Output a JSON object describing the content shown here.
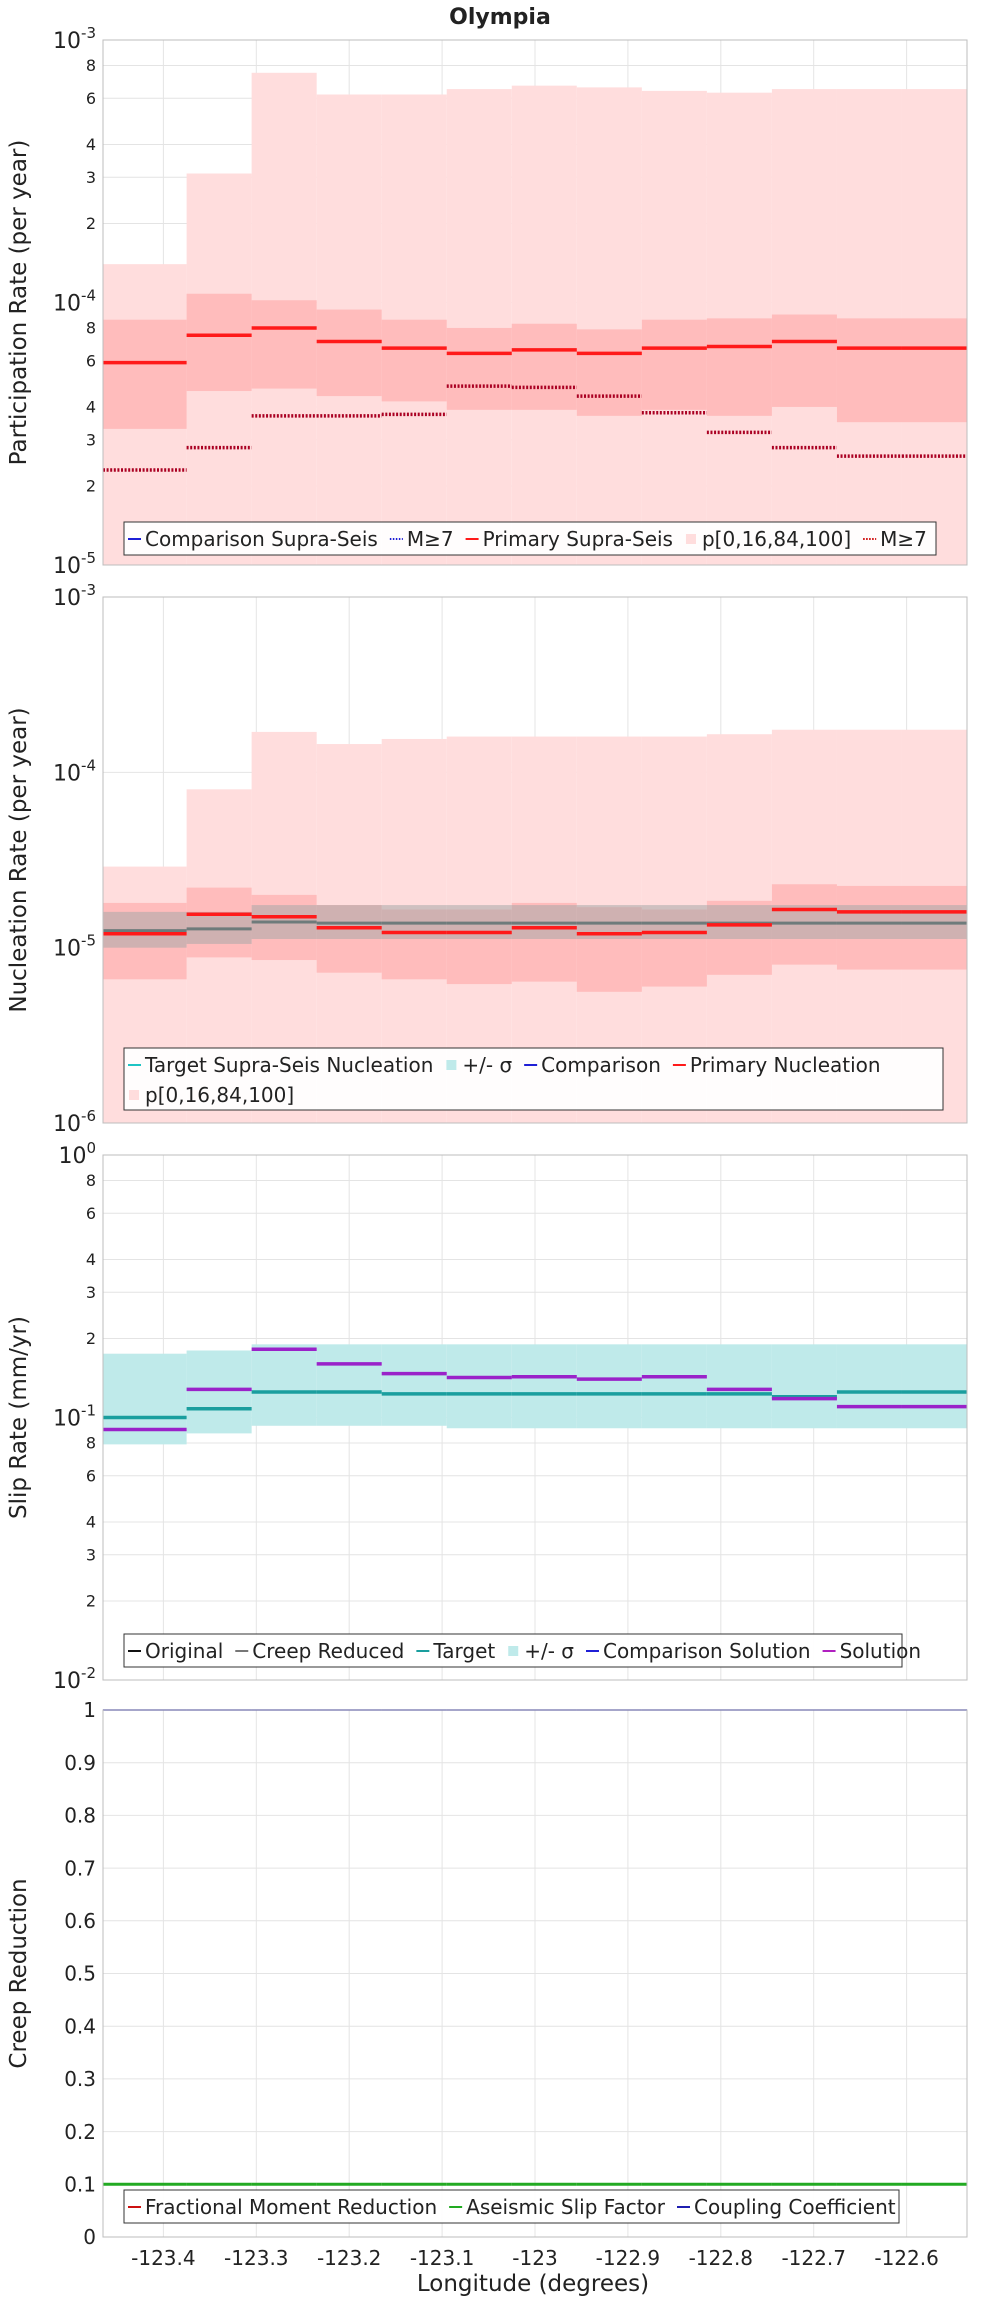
{
  "chart_data": {
    "type": "line",
    "title": "Olympia",
    "xlabel": "Longitude (degrees)",
    "xlim": [
      -123.465,
      -122.535
    ],
    "xticks": [
      -123.4,
      -123.3,
      -123.2,
      -123.1,
      -123,
      -122.9,
      -122.8,
      -122.7,
      -122.6
    ],
    "xtick_labels": [
      "-123.4",
      "-123.3",
      "-123.2",
      "-123.1",
      "-123",
      "-122.9",
      "-122.8",
      "-122.7",
      "-122.6"
    ],
    "bin_edges": [
      -123.465,
      -123.375,
      -123.305,
      -123.235,
      -123.165,
      -123.095,
      -123.025,
      -122.955,
      -122.885,
      -122.815,
      -122.745,
      -122.675,
      -122.605,
      -122.535
    ],
    "panels": [
      {
        "id": "participation",
        "ylabel": "Participation Rate (per year)",
        "scale": "log",
        "ylim": [
          1e-05,
          0.001
        ],
        "ticks": [
          {
            "label": "10",
            "exp": "-5",
            "value": 1e-05,
            "major": true
          },
          {
            "label": "2",
            "value": 2e-05
          },
          {
            "label": "3",
            "value": 3e-05
          },
          {
            "label": "4",
            "value": 4e-05
          },
          {
            "label": "6",
            "value": 6e-05
          },
          {
            "label": "8",
            "value": 8e-05
          },
          {
            "label": "10",
            "exp": "-4",
            "value": 0.0001,
            "major": true
          },
          {
            "label": "2",
            "value": 0.0002
          },
          {
            "label": "3",
            "value": 0.0003
          },
          {
            "label": "4",
            "value": 0.0004
          },
          {
            "label": "6",
            "value": 0.0006
          },
          {
            "label": "8",
            "value": 0.0008
          },
          {
            "label": "10",
            "exp": "-3",
            "value": 0.001,
            "major": true
          }
        ],
        "bands": [
          {
            "name": "p[0,16,84,100] outer",
            "color": "#ffdddd",
            "lower": [
              1e-05,
              1e-05,
              1e-05,
              1e-05,
              1e-05,
              1e-05,
              1e-05,
              1e-05,
              1e-05,
              1e-05,
              1e-05,
              1e-05,
              1e-05
            ],
            "upper": [
              0.00014,
              0.00031,
              0.00075,
              0.00062,
              0.00062,
              0.00065,
              0.00067,
              0.00066,
              0.00064,
              0.00063,
              0.00065,
              0.00065,
              0.00065
            ]
          },
          {
            "name": "p[0,16,84,100] inner",
            "color": "#ffbcbc",
            "lower": [
              3.3e-05,
              4.6e-05,
              4.7e-05,
              4.4e-05,
              4.2e-05,
              3.9e-05,
              3.9e-05,
              3.7e-05,
              3.9e-05,
              3.7e-05,
              4e-05,
              3.5e-05,
              3.5e-05
            ],
            "upper": [
              8.6e-05,
              0.000108,
              0.000102,
              9.4e-05,
              8.6e-05,
              8e-05,
              8.3e-05,
              7.9e-05,
              8.6e-05,
              8.7e-05,
              9e-05,
              8.7e-05,
              8.7e-05
            ]
          }
        ],
        "series": [
          {
            "name": "Primary Supra-Seis",
            "color": "#ff1a1a",
            "style": "solid",
            "width": 3.5,
            "values": [
              5.9e-05,
              7.5e-05,
              8e-05,
              7.1e-05,
              6.7e-05,
              6.4e-05,
              6.6e-05,
              6.4e-05,
              6.7e-05,
              6.8e-05,
              7.1e-05,
              6.7e-05,
              6.7e-05
            ]
          },
          {
            "name": "M≥7",
            "color": "#aa0022",
            "style": "dotted",
            "width": 3.5,
            "values": [
              2.3e-05,
              2.8e-05,
              3.7e-05,
              3.7e-05,
              3.75e-05,
              4.8e-05,
              4.75e-05,
              4.4e-05,
              3.8e-05,
              3.2e-05,
              2.8e-05,
              2.6e-05,
              2.6e-05
            ]
          }
        ],
        "legend": {
          "placement": "bottom",
          "rows": [
            [
              {
                "label": "Comparison Supra-Seis",
                "kind": "line",
                "color": "#1f1fd6"
              },
              {
                "label": "M≥7",
                "kind": "dotted",
                "color": "#1f1fd6"
              },
              {
                "label": "Primary Supra-Seis",
                "kind": "line",
                "color": "#ff1a1a"
              },
              {
                "label": "p[0,16,84,100]",
                "kind": "patch",
                "color": "#ffdddd"
              },
              {
                "label": "M≥7",
                "kind": "dotted",
                "color": "#cc0000"
              }
            ]
          ]
        }
      },
      {
        "id": "nucleation",
        "ylabel": "Nucleation Rate (per year)",
        "scale": "log",
        "ylim": [
          1e-06,
          0.001
        ],
        "ticks": [
          {
            "label": "10",
            "exp": "-6",
            "value": 1e-06,
            "major": true
          },
          {
            "label": "10",
            "exp": "-5",
            "value": 1e-05,
            "major": true
          },
          {
            "label": "10",
            "exp": "-4",
            "value": 0.0001,
            "major": true
          },
          {
            "label": "10",
            "exp": "-3",
            "value": 0.001,
            "major": true
          }
        ],
        "bands": [
          {
            "name": "p[0,16,84,100] outer",
            "color": "#ffdddd",
            "lower": [
              1e-06,
              1e-06,
              1e-06,
              1e-06,
              1e-06,
              1e-06,
              1e-06,
              1e-06,
              1e-06,
              1e-06,
              1e-06,
              1e-06,
              1e-06
            ],
            "upper": [
              2.9e-05,
              8e-05,
              0.00017,
              0.000145,
              0.000155,
              0.00016,
              0.00016,
              0.00016,
              0.00016,
              0.000165,
              0.000175,
              0.000175,
              0.000175
            ]
          },
          {
            "name": "p[0,16,84,100] inner",
            "color": "#ffbcbc",
            "lower": [
              6.6e-06,
              8.8e-06,
              8.5e-06,
              7.2e-06,
              6.6e-06,
              6.2e-06,
              6.4e-06,
              5.6e-06,
              6e-06,
              7e-06,
              8e-06,
              7.5e-06,
              7.5e-06
            ],
            "upper": [
              1.8e-05,
              2.2e-05,
              2e-05,
              1.75e-05,
              1.65e-05,
              1.65e-05,
              1.8e-05,
              1.7e-05,
              1.65e-05,
              1.85e-05,
              2.3e-05,
              2.25e-05,
              2.25e-05
            ]
          },
          {
            "name": "+/- σ",
            "color": "#a8a8a8",
            "opacity": 0.55,
            "lower": [
              1e-05,
              1.05e-05,
              1.12e-05,
              1.12e-05,
              1.12e-05,
              1.12e-05,
              1.12e-05,
              1.12e-05,
              1.12e-05,
              1.12e-05,
              1.12e-05,
              1.12e-05,
              1.12e-05
            ],
            "upper": [
              1.6e-05,
              1.6e-05,
              1.75e-05,
              1.75e-05,
              1.75e-05,
              1.75e-05,
              1.75e-05,
              1.75e-05,
              1.75e-05,
              1.75e-05,
              1.75e-05,
              1.75e-05,
              1.75e-05
            ]
          }
        ],
        "series": [
          {
            "name": "Target Supra-Seis Nucleation",
            "color": "#6e7b7b",
            "style": "solid",
            "width": 3,
            "values": [
              1.25e-05,
              1.28e-05,
              1.4e-05,
              1.38e-05,
              1.38e-05,
              1.38e-05,
              1.38e-05,
              1.38e-05,
              1.38e-05,
              1.38e-05,
              1.38e-05,
              1.38e-05,
              1.38e-05
            ]
          },
          {
            "name": "Primary Nucleation",
            "color": "#ff1a1a",
            "style": "solid",
            "width": 3.5,
            "values": [
              1.2e-05,
              1.55e-05,
              1.5e-05,
              1.3e-05,
              1.22e-05,
              1.22e-05,
              1.3e-05,
              1.2e-05,
              1.22e-05,
              1.35e-05,
              1.65e-05,
              1.6e-05,
              1.6e-05
            ]
          }
        ],
        "legend": {
          "placement": "bottom",
          "rows": [
            [
              {
                "label": "Target Supra-Seis Nucleation",
                "kind": "line",
                "color": "#1fc4c4"
              },
              {
                "label": "+/- σ",
                "kind": "patch",
                "color": "#bfeaea"
              },
              {
                "label": "Comparison",
                "kind": "line",
                "color": "#1f1fd6"
              },
              {
                "label": "Primary Nucleation",
                "kind": "line",
                "color": "#ff1a1a"
              }
            ],
            [
              {
                "label": "p[0,16,84,100]",
                "kind": "patch",
                "color": "#ffdddd"
              }
            ]
          ]
        }
      },
      {
        "id": "slip",
        "ylabel": "Slip Rate (mm/yr)",
        "scale": "log",
        "ylim": [
          0.01,
          1
        ],
        "ticks": [
          {
            "label": "10",
            "exp": "-2",
            "value": 0.01,
            "major": true
          },
          {
            "label": "2",
            "value": 0.02
          },
          {
            "label": "3",
            "value": 0.03
          },
          {
            "label": "4",
            "value": 0.04
          },
          {
            "label": "6",
            "value": 0.06
          },
          {
            "label": "8",
            "value": 0.08
          },
          {
            "label": "10",
            "exp": "-1",
            "value": 0.1,
            "major": true
          },
          {
            "label": "2",
            "value": 0.2
          },
          {
            "label": "3",
            "value": 0.3
          },
          {
            "label": "4",
            "value": 0.4
          },
          {
            "label": "6",
            "value": 0.6
          },
          {
            "label": "8",
            "value": 0.8
          },
          {
            "label": "10",
            "exp": "0",
            "value": 1,
            "major": true
          }
        ],
        "bands": [
          {
            "name": "+/- σ",
            "color": "#bfeaea",
            "lower": [
              0.079,
              0.087,
              0.093,
              0.093,
              0.093,
              0.091,
              0.091,
              0.091,
              0.091,
              0.091,
              0.091,
              0.091,
              0.091
            ],
            "upper": [
              0.175,
              0.18,
              0.19,
              0.19,
              0.19,
              0.19,
              0.19,
              0.19,
              0.19,
              0.19,
              0.19,
              0.19,
              0.19
            ]
          }
        ],
        "series": [
          {
            "name": "Target",
            "color": "#1a9e9e",
            "style": "solid",
            "width": 3.5,
            "values": [
              0.1,
              0.108,
              0.125,
              0.125,
              0.123,
              0.123,
              0.123,
              0.123,
              0.123,
              0.123,
              0.12,
              0.125,
              0.125
            ]
          },
          {
            "name": "Solution",
            "color": "#9a22c9",
            "style": "solid",
            "width": 3.5,
            "values": [
              0.09,
              0.128,
              0.182,
              0.16,
              0.147,
              0.142,
              0.143,
              0.14,
              0.143,
              0.128,
              0.118,
              0.11,
              0.11
            ]
          }
        ],
        "legend": {
          "placement": "bottom",
          "rows": [
            [
              {
                "label": "Original",
                "kind": "line",
                "color": "#111111"
              },
              {
                "label": "Creep Reduced",
                "kind": "line",
                "color": "#777777"
              },
              {
                "label": "Target",
                "kind": "line",
                "color": "#1a9e9e"
              },
              {
                "label": "+/- σ",
                "kind": "patch",
                "color": "#bfeaea"
              },
              {
                "label": "Comparison Solution",
                "kind": "line",
                "color": "#1f1fd6"
              },
              {
                "label": "Solution",
                "kind": "line",
                "color": "#b020c0"
              }
            ]
          ]
        }
      },
      {
        "id": "creep",
        "ylabel": "Creep Reduction",
        "scale": "linear",
        "ylim": [
          0,
          1
        ],
        "ticks": [
          {
            "label": "0",
            "value": 0
          },
          {
            "label": "0.1",
            "value": 0.1
          },
          {
            "label": "0.2",
            "value": 0.2
          },
          {
            "label": "0.3",
            "value": 0.3
          },
          {
            "label": "0.4",
            "value": 0.4
          },
          {
            "label": "0.5",
            "value": 0.5
          },
          {
            "label": "0.6",
            "value": 0.6
          },
          {
            "label": "0.7",
            "value": 0.7
          },
          {
            "label": "0.8",
            "value": 0.8
          },
          {
            "label": "0.9",
            "value": 0.9
          },
          {
            "label": "1",
            "value": 1
          }
        ],
        "bands": [],
        "series": [
          {
            "name": "Aseismic Slip Factor",
            "color": "#22aa22",
            "style": "solid",
            "width": 3,
            "values": [
              0.1,
              0.1,
              0.1,
              0.1,
              0.1,
              0.1,
              0.1,
              0.1,
              0.1,
              0.1,
              0.1,
              0.1,
              0.1
            ]
          },
          {
            "name": "Coupling Coefficient",
            "color": "#1f1fb0",
            "style": "solid",
            "width": 1.5,
            "values": [
              1,
              1,
              1,
              1,
              1,
              1,
              1,
              1,
              1,
              1,
              1,
              1,
              1
            ]
          }
        ],
        "legend": {
          "placement": "bottom",
          "rows": [
            [
              {
                "label": "Fractional Moment Reduction",
                "kind": "line",
                "color": "#cc1111"
              },
              {
                "label": "Aseismic Slip Factor",
                "kind": "line",
                "color": "#22aa22"
              },
              {
                "label": "Coupling Coefficient",
                "kind": "line",
                "color": "#1f1fb0"
              }
            ]
          ]
        }
      }
    ]
  }
}
